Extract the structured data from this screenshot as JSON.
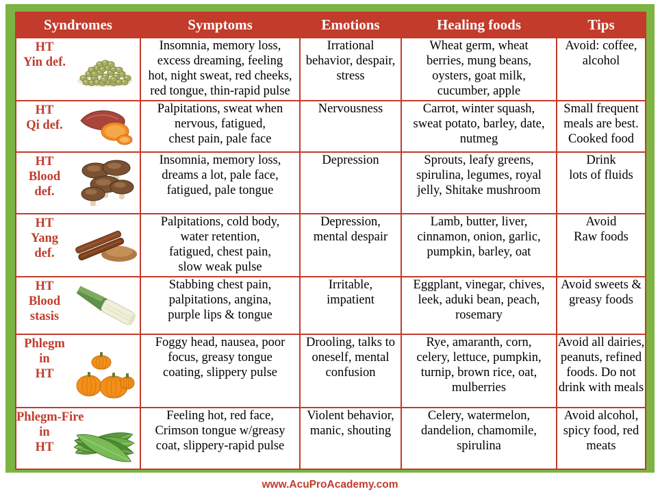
{
  "headers": [
    "Syndromes",
    "Symptoms",
    "Emotions",
    "Healing foods",
    "Tips"
  ],
  "rows": [
    {
      "syndrome": [
        "HT",
        "Yin def."
      ],
      "image_icon": "mung-beans",
      "symptoms": [
        "Insomnia, memory loss,",
        "excess dreaming, feeling",
        "hot, night sweat, red cheeks,",
        "red tongue, thin-rapid pulse"
      ],
      "emotions": [
        "Irrational",
        "behavior, despair,",
        "stress"
      ],
      "foods": [
        "Wheat germ, wheat",
        "berries, mung beans,",
        "oysters, goat milk,",
        "cucumber, apple"
      ],
      "tips": [
        "Avoid: coffee,",
        "alcohol"
      ]
    },
    {
      "syndrome": [
        "HT",
        "Qi def."
      ],
      "image_icon": "sweet-potato",
      "symptoms": [
        "Palpitations, sweat when",
        "nervous, fatigued,",
        "chest pain, pale face"
      ],
      "emotions": [
        "Nervousness"
      ],
      "foods": [
        "Carrot, winter squash,",
        "sweat potato, barley, date,",
        "nutmeg"
      ],
      "tips": [
        "Small frequent",
        "meals are best.",
        "Cooked food"
      ]
    },
    {
      "syndrome": [
        "HT",
        "Blood",
        "def."
      ],
      "image_icon": "shiitake-mushrooms",
      "symptoms": [
        "Insomnia, memory loss,",
        "dreams a lot, pale face,",
        "fatigued, pale tongue"
      ],
      "emotions": [
        "Depression"
      ],
      "foods": [
        "Sprouts, leafy greens,",
        "spirulina, legumes, royal",
        "jelly, Shitake mushroom"
      ],
      "tips": [
        "Drink",
        "lots of fluids"
      ]
    },
    {
      "syndrome": [
        "HT",
        "Yang",
        "def."
      ],
      "image_icon": "cinnamon",
      "symptoms": [
        "Palpitations, cold body,",
        "water retention,",
        "fatigued, chest pain,",
        "slow weak pulse"
      ],
      "emotions": [
        "Depression,",
        "mental despair"
      ],
      "foods": [
        "Lamb, butter, liver,",
        "cinnamon, onion, garlic,",
        "pumpkin, barley, oat"
      ],
      "tips": [
        "Avoid",
        "Raw foods"
      ]
    },
    {
      "syndrome": [
        "HT",
        "Blood",
        "stasis"
      ],
      "image_icon": "leek",
      "symptoms": [
        "Stabbing chest pain,",
        "palpitations, angina,",
        "purple lips & tongue"
      ],
      "emotions": [
        "Irritable,",
        "impatient"
      ],
      "foods": [
        "Eggplant, vinegar, chives,",
        "leek, aduki bean, peach,",
        "rosemary"
      ],
      "tips": [
        "Avoid sweets &",
        "greasy foods"
      ]
    },
    {
      "syndrome": [
        "Phlegm",
        "in",
        "HT"
      ],
      "image_icon": "pumpkins",
      "symptoms": [
        "Foggy head, nausea, poor",
        "focus, greasy tongue",
        "coating, slippery pulse"
      ],
      "emotions": [
        "Drooling, talks to",
        "oneself, mental",
        "confusion"
      ],
      "foods": [
        "Rye, amaranth, corn,",
        "celery, lettuce, pumpkin,",
        "turnip, brown rice, oat,",
        "mulberries"
      ],
      "tips": [
        "Avoid all dairies,",
        "peanuts, refined",
        "foods. Do not",
        "drink with meals"
      ]
    },
    {
      "syndrome": [
        "Phlegm-Fire",
        "in",
        "HT"
      ],
      "image_icon": "dandelion-leaves",
      "symptoms": [
        "Feeling hot, red face,",
        "Crimson tongue w/greasy",
        "coat, slippery-rapid pulse"
      ],
      "emotions": [
        "Violent behavior,",
        "manic, shouting"
      ],
      "foods": [
        "Celery, watermelon,",
        "dandelion, chamomile,",
        "spirulina"
      ],
      "tips": [
        "Avoid alcohol,",
        "spicy food, red",
        "meats"
      ]
    }
  ],
  "footer": "www.AcuProAcademy.com",
  "colors": {
    "accent": "#c23b2b",
    "frame": "#7cb342",
    "background": "#ffffff"
  }
}
